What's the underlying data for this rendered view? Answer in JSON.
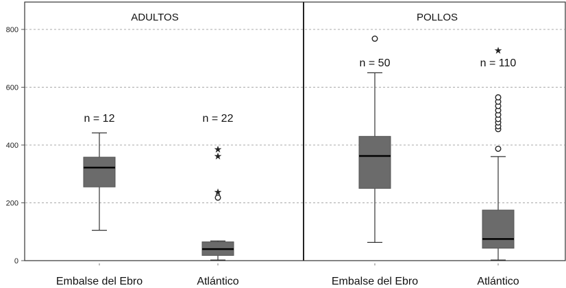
{
  "chart_data": {
    "type": "boxplot",
    "panels": [
      "ADULTOS",
      "POLLOS"
    ],
    "categories": [
      "Embalse del Ebro",
      "Atlántico"
    ],
    "yticks": [
      0,
      200,
      400,
      600,
      800
    ],
    "ylim": [
      0,
      850
    ],
    "grid": true,
    "box_color": "#6b6b6b",
    "boxes": [
      {
        "panel": "ADULTOS",
        "category": "Embalse del Ebro",
        "n_label": "n = 12",
        "whisker_low": 105,
        "q1": 255,
        "median": 322,
        "q3": 358,
        "whisker_high": 442,
        "outliers": [],
        "extremes": []
      },
      {
        "panel": "ADULTOS",
        "category": "Atlántico",
        "n_label": "n = 22",
        "whisker_low": 2,
        "q1": 18,
        "median": 40,
        "q3": 65,
        "whisker_high": 68,
        "outliers": [
          218
        ],
        "extremes": [
          240,
          365,
          388
        ]
      },
      {
        "panel": "POLLOS",
        "category": "Embalse del Ebro",
        "n_label": "n = 50",
        "whisker_low": 63,
        "q1": 250,
        "median": 362,
        "q3": 430,
        "whisker_high": 650,
        "outliers": [
          768
        ],
        "extremes": []
      },
      {
        "panel": "POLLOS",
        "category": "Atlántico",
        "n_label": "n = 110",
        "whisker_low": 2,
        "q1": 43,
        "median": 75,
        "q3": 175,
        "whisker_high": 360,
        "outliers": [
          387,
          455,
          465,
          478,
          490,
          505,
          520,
          535,
          550,
          565
        ],
        "extremes": [
          730
        ]
      }
    ]
  }
}
